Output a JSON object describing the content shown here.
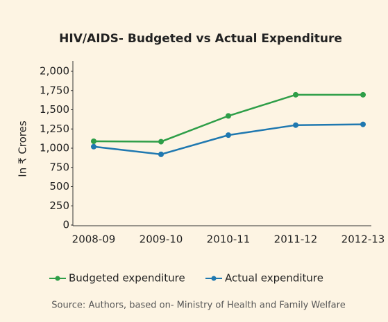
{
  "chart_data": {
    "type": "line",
    "title": "HIV/AIDS- Budgeted vs Actual Expenditure",
    "y_label": "In ₹ Crores",
    "source": "Source: Authors, based on- Ministry of Health and Family Welfare",
    "categories": [
      "2008-09",
      "2009-10",
      "2010-11",
      "2011-12",
      "2012-13"
    ],
    "series": [
      {
        "name": "Budgeted expenditure",
        "color": "#2e9e48",
        "values": [
          1090,
          1085,
          1420,
          1695,
          1695
        ]
      },
      {
        "name": "Actual expenditure",
        "color": "#1f78b0",
        "values": [
          1020,
          920,
          1170,
          1300,
          1310
        ]
      }
    ],
    "ylim": [
      0,
      2000
    ],
    "yticks": [
      0,
      250,
      500,
      750,
      {
        "value": 1000,
        "label": "1,000"
      },
      {
        "value": 1250,
        "label": "1,250"
      },
      {
        "value": 1500,
        "label": "1,500"
      },
      {
        "value": 1750,
        "label": "1,750"
      },
      {
        "value": 2000,
        "label": "2,000"
      }
    ],
    "legend": "bottom"
  }
}
